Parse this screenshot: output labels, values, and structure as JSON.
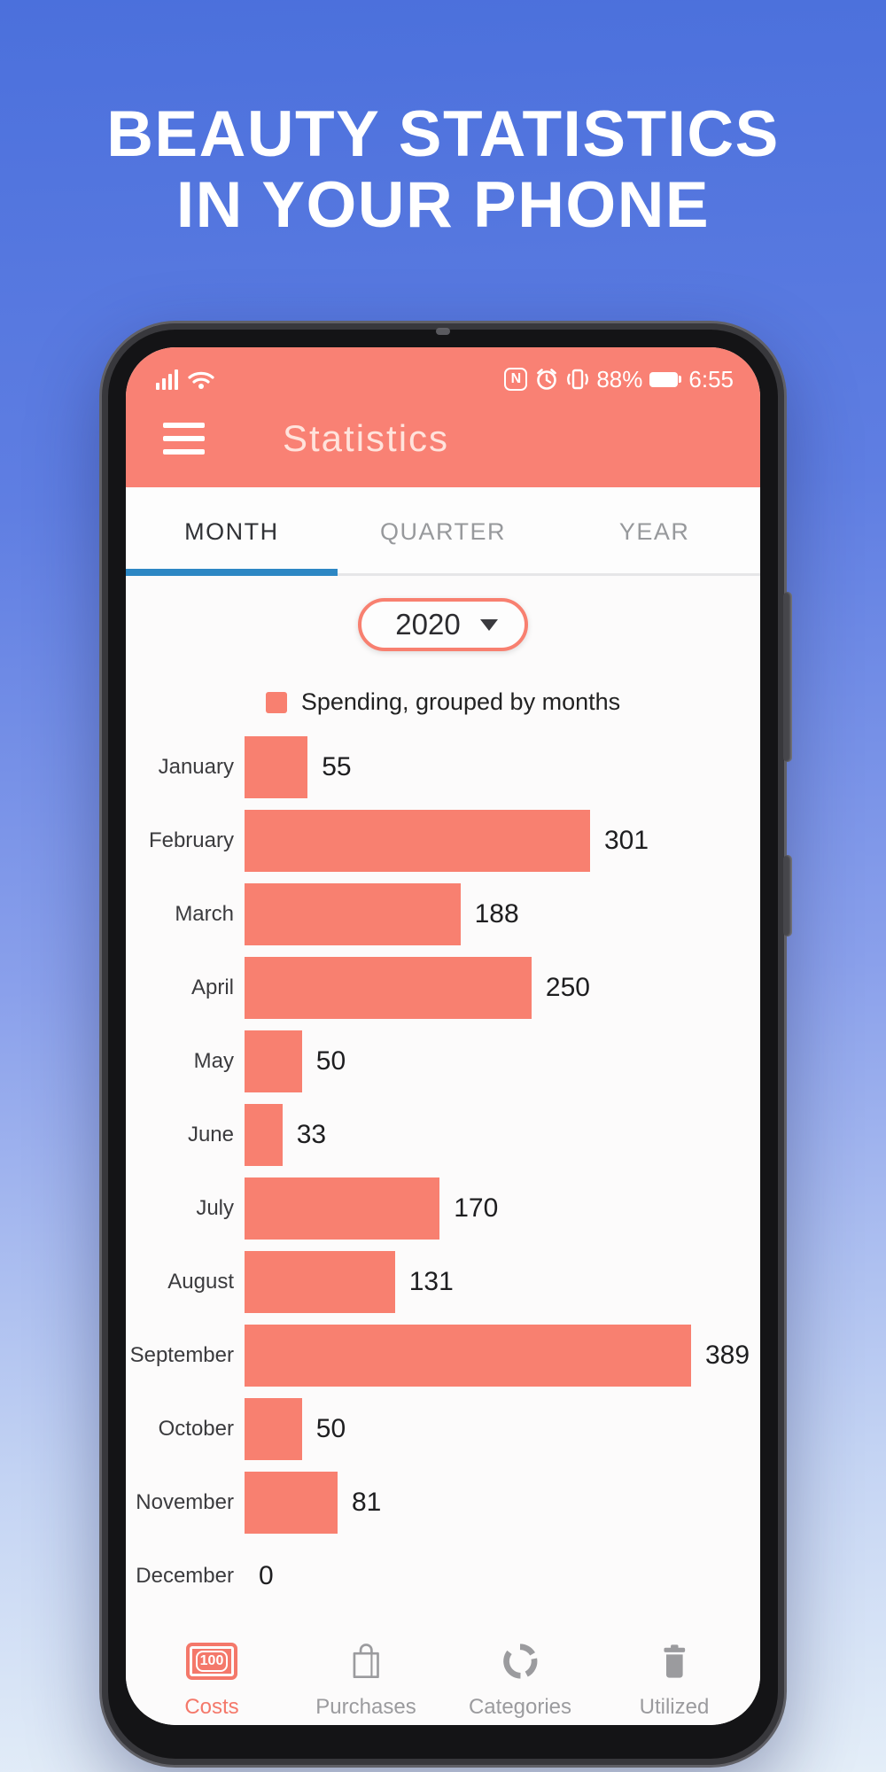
{
  "hero": {
    "title_line1": "BEAUTY STATISTICS",
    "title_line2": "IN YOUR PHONE"
  },
  "phone": {
    "status_bar": {
      "left_icons": [
        "signal-bars-icon",
        "wifi-icon"
      ],
      "right_icons": [
        "nfc-icon",
        "alarm-clock-icon",
        "vibrate-icon",
        "battery-icon"
      ],
      "nfc_glyph": "N",
      "battery_percent": "88%",
      "time": "6:55"
    },
    "app_bar": {
      "menu_icon": "hamburger-menu-icon",
      "title": "Statistics"
    },
    "tabs": [
      {
        "label": "MONTH",
        "active": true
      },
      {
        "label": "QUARTER",
        "active": false
      },
      {
        "label": "YEAR",
        "active": false
      }
    ],
    "year_selector": {
      "value": "2020",
      "icon": "caret-down-icon"
    },
    "legend": {
      "label": "Spending, grouped by months"
    },
    "bottom_nav": [
      {
        "label": "Costs",
        "icon": "banknote-100-icon",
        "badge": "100",
        "active": true
      },
      {
        "label": "Purchases",
        "icon": "shopping-bag-icon",
        "active": false
      },
      {
        "label": "Categories",
        "icon": "donut-chart-icon",
        "active": false
      },
      {
        "label": "Utilized",
        "icon": "trash-icon",
        "active": false
      }
    ]
  },
  "chart_data": {
    "type": "bar",
    "orientation": "horizontal",
    "title": "Spending, grouped by months",
    "categories": [
      "January",
      "February",
      "March",
      "April",
      "May",
      "June",
      "July",
      "August",
      "September",
      "October",
      "November",
      "December"
    ],
    "series": [
      {
        "name": "Spending",
        "values": [
          55,
          301,
          188,
          250,
          50,
          33,
          170,
          131,
          389,
          50,
          81,
          0
        ]
      }
    ],
    "xlim": [
      0,
      389
    ],
    "grid": false,
    "legend_position": "top",
    "bar_color": "#f88070",
    "value_labels": true
  },
  "colors": {
    "accent_coral": "#f98174",
    "bar_coral": "#f88070",
    "tab_underline_blue": "#2d87c4",
    "active_nav": "#f4786a",
    "inactive_gray": "#9b9b9e",
    "hero_text": "#ffffff",
    "background_top": "#4b70dc",
    "background_bottom": "#e4eef8"
  }
}
